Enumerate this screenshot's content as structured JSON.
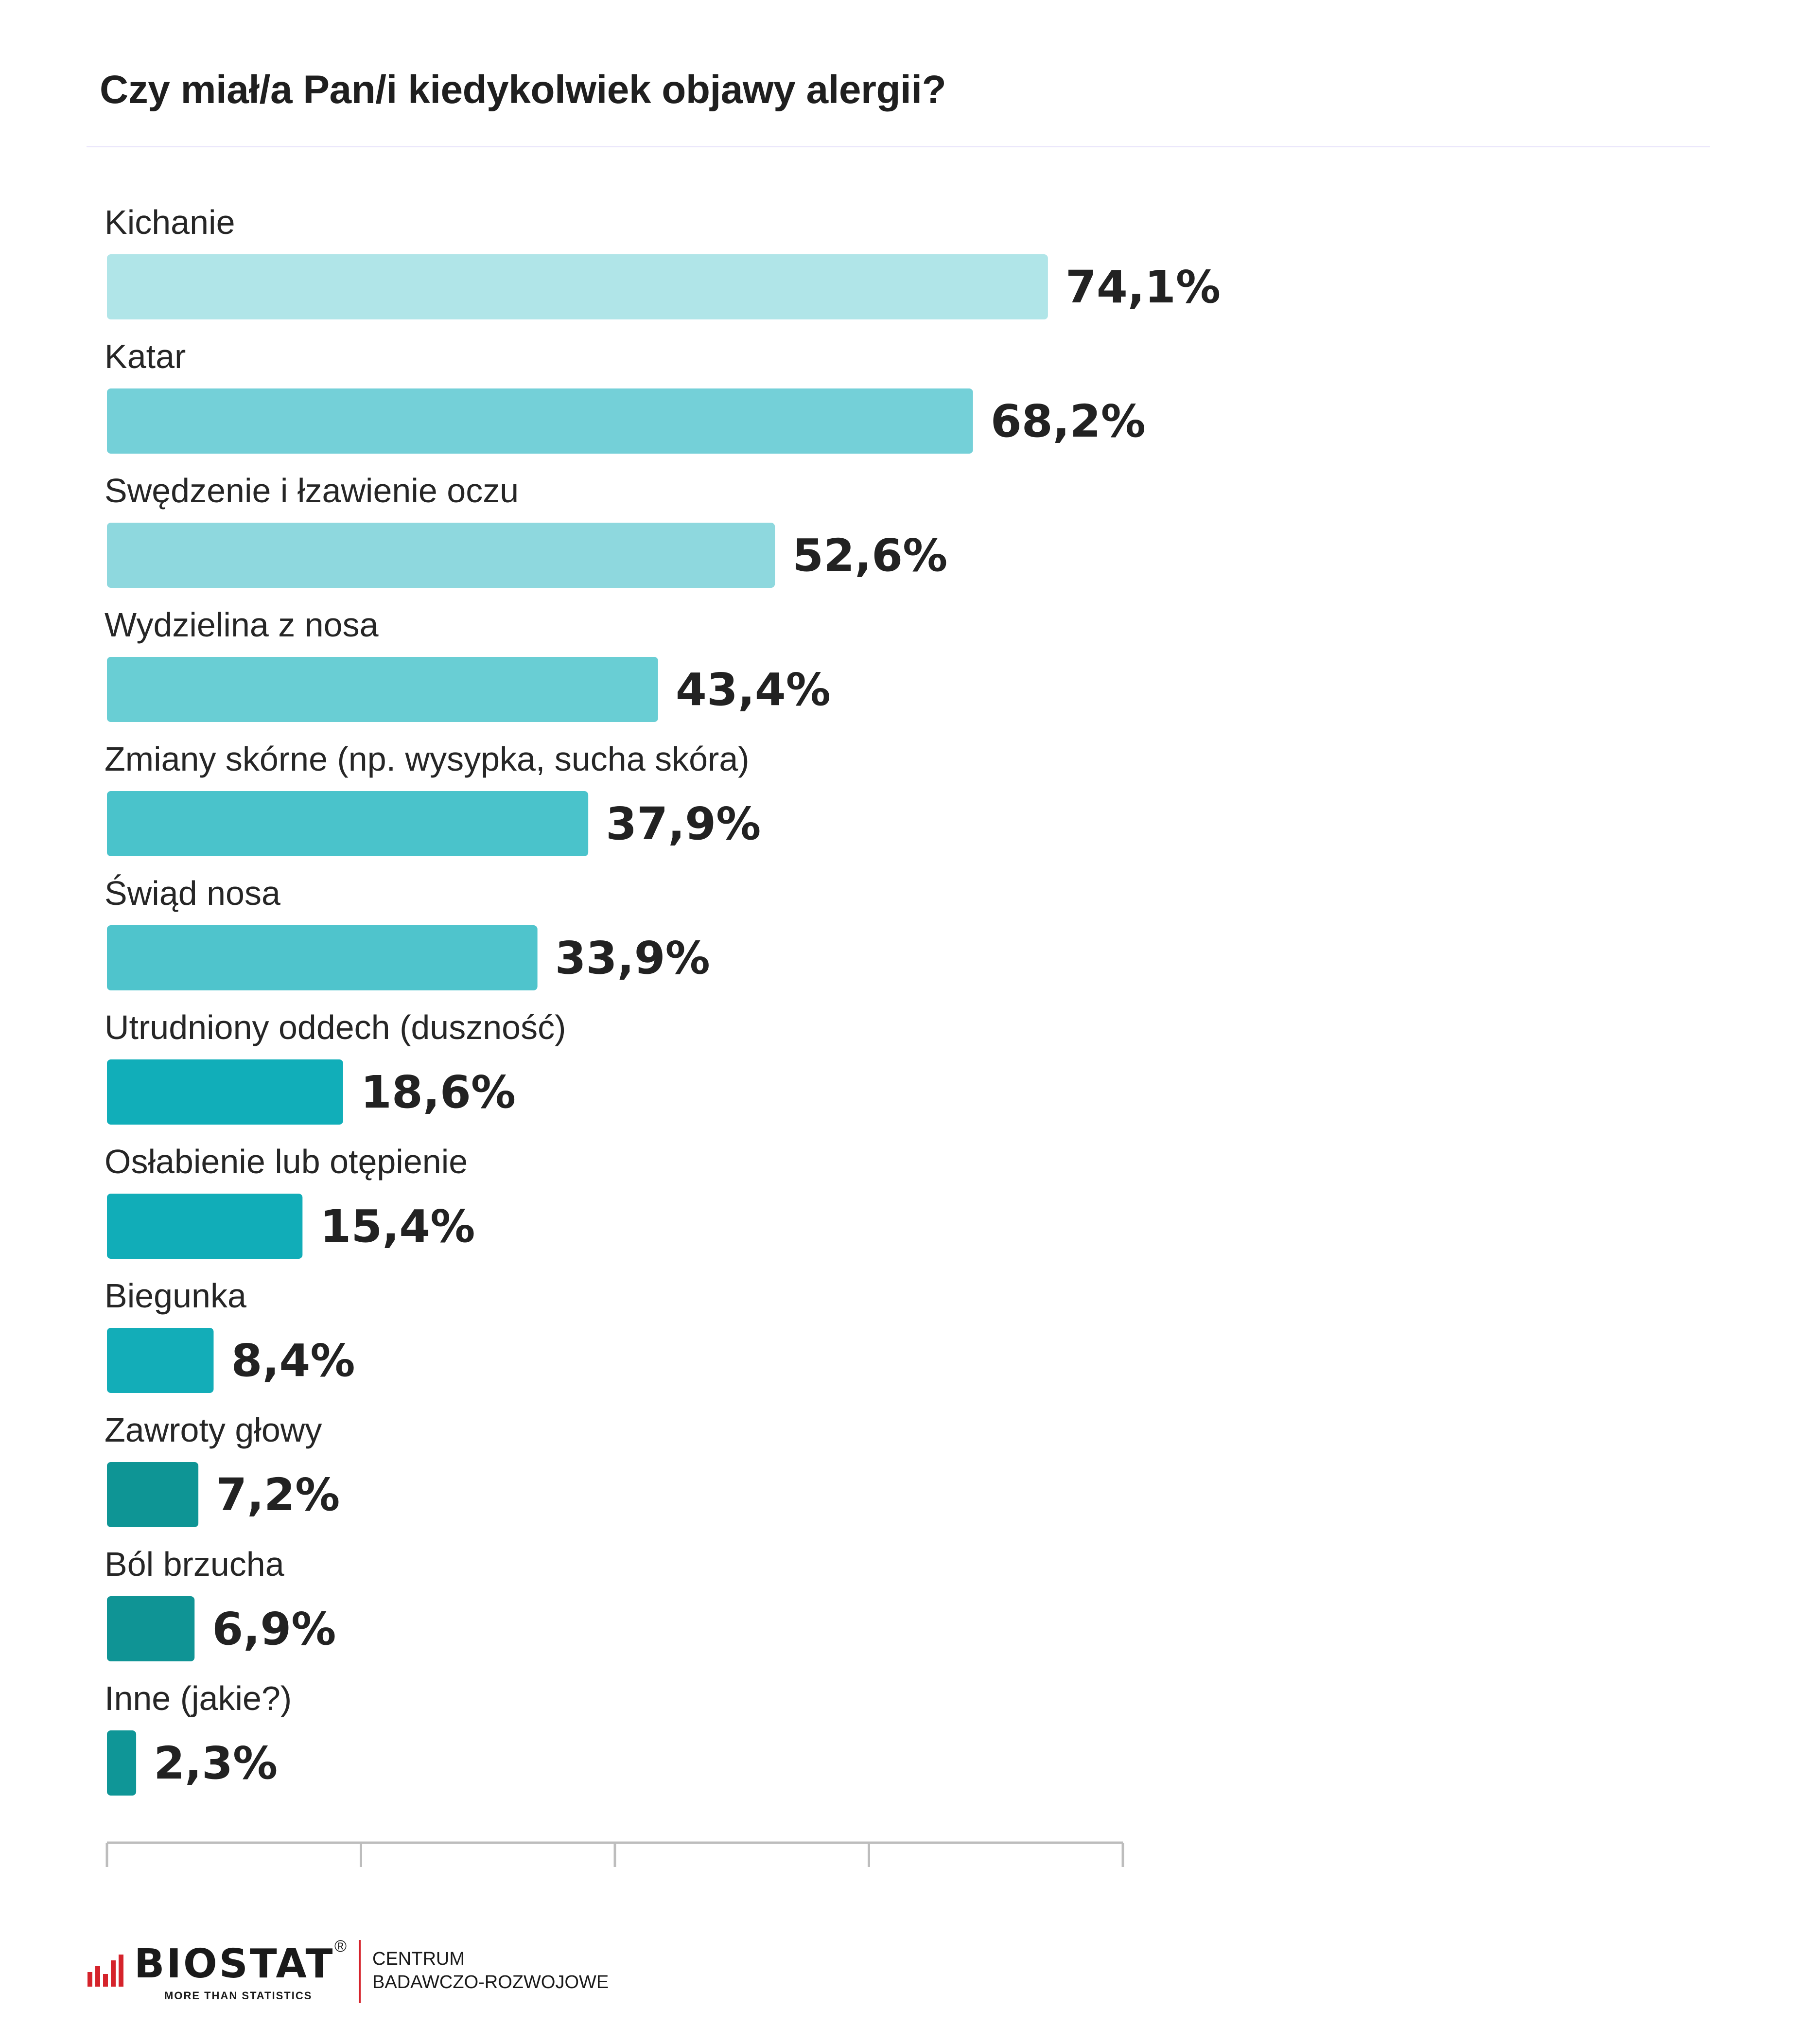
{
  "chart_data": {
    "type": "bar",
    "orientation": "horizontal",
    "title": "Czy miał/a Pan/i kiedykolwiek objawy alergii?",
    "categories": [
      "Kichanie",
      "Katar",
      "Swędzenie i łzawienie oczu",
      "Wydzielina z nosa",
      "Zmiany skórne (np. wysypka, sucha skóra)",
      "Świąd nosa",
      "Utrudniony oddech (duszność)",
      "Osłabienie lub otępienie",
      "Biegunka",
      "Zawroty głowy",
      "Ból brzucha",
      "Inne (jakie?)"
    ],
    "values": [
      74.1,
      68.2,
      52.6,
      43.4,
      37.9,
      33.9,
      18.6,
      15.4,
      8.4,
      7.2,
      6.9,
      2.3
    ],
    "value_labels": [
      "74,1%",
      "68,2%",
      "52,6%",
      "43,4%",
      "37,9%",
      "33,9%",
      "18,6%",
      "15,4%",
      "8,4%",
      "7,2%",
      "6,9%",
      "2,3%"
    ],
    "bar_colors": [
      "#b0e5e8",
      "#74d0d8",
      "#8ed8de",
      "#69ced4",
      "#4ac3cb",
      "#4fc4cc",
      "#11aeb9",
      "#11adb8",
      "#13adb8",
      "#0e9595",
      "#0f9495",
      "#0f9697"
    ],
    "xlim": [
      0,
      80
    ],
    "x_ticks": [
      0,
      20,
      40,
      60,
      80
    ],
    "x_tick_labels_shown": false,
    "grid": false,
    "legend": "none"
  },
  "footer": {
    "logo_text": "BIOSTAT",
    "logo_registered": "®",
    "logo_tagline": "MORE THAN STATISTICS",
    "line1": "CENTRUM",
    "line2": "BADAWCZO-ROZWOJOWE",
    "accent_color": "#d5232b"
  }
}
